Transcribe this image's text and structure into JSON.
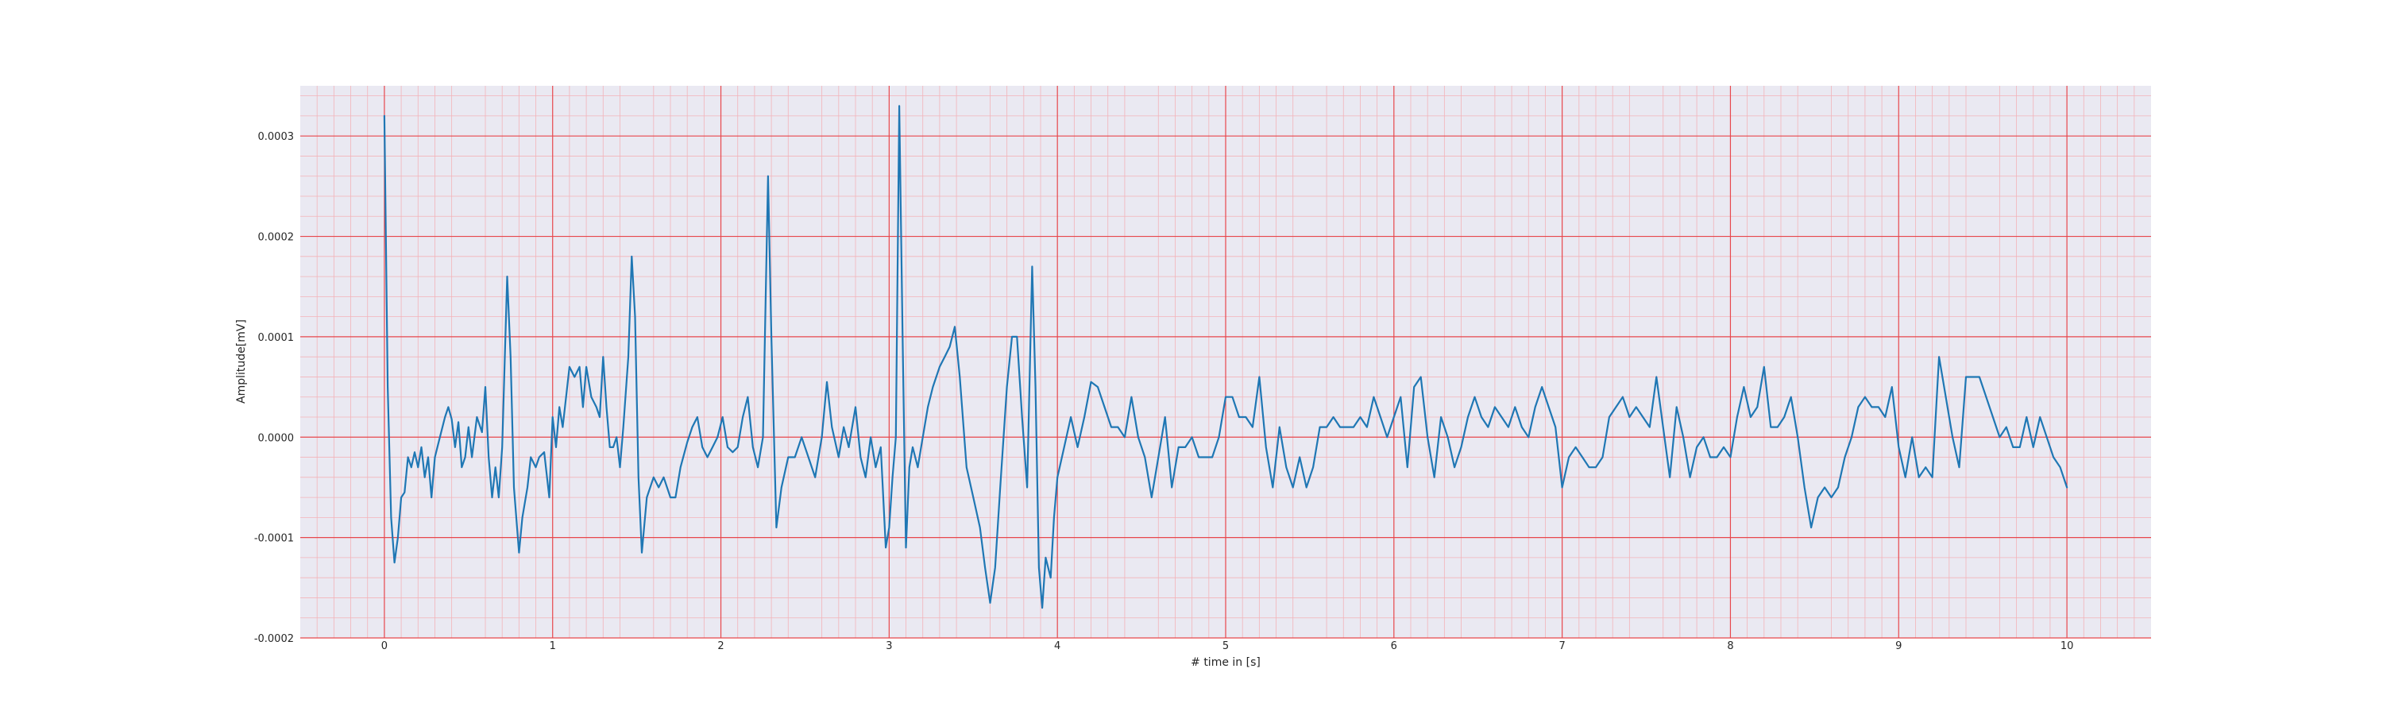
{
  "chart_data": {
    "type": "line",
    "title": "",
    "xlabel": "# time in [s]",
    "ylabel": "Amplitude[mV]",
    "xlim": [
      -0.5,
      10.5
    ],
    "ylim": [
      -0.0002,
      0.00035
    ],
    "x_ticks": [
      0,
      1,
      2,
      3,
      4,
      5,
      6,
      7,
      8,
      9,
      10
    ],
    "x_tick_labels": [
      "0",
      "1",
      "2",
      "3",
      "4",
      "5",
      "6",
      "7",
      "8",
      "9",
      "10"
    ],
    "y_ticks": [
      -0.0002,
      -0.0001,
      0.0,
      0.0001,
      0.0002,
      0.0003
    ],
    "y_tick_labels": [
      "-0.0002",
      "-0.0001",
      "0.0000",
      "0.0001",
      "0.0002",
      "0.0003"
    ],
    "grid": true,
    "minor_grid": true,
    "colors": {
      "background": "#eae9f2",
      "major_grid": "#e8474c",
      "minor_grid": "#f3b3b9",
      "line": "#1f77b4"
    },
    "series": [
      {
        "points": [
          [
            0.0,
            0.00032
          ],
          [
            0.02,
            5e-05
          ],
          [
            0.04,
            -8e-05
          ],
          [
            0.06,
            -0.000125
          ],
          [
            0.08,
            -0.0001
          ],
          [
            0.1,
            -6e-05
          ],
          [
            0.12,
            -5.5e-05
          ],
          [
            0.14,
            -2e-05
          ],
          [
            0.16,
            -3e-05
          ],
          [
            0.18,
            -1.5e-05
          ],
          [
            0.2,
            -3e-05
          ],
          [
            0.22,
            -1e-05
          ],
          [
            0.24,
            -4e-05
          ],
          [
            0.26,
            -2e-05
          ],
          [
            0.28,
            -6e-05
          ],
          [
            0.3,
            -2e-05
          ],
          [
            0.33,
            0.0
          ],
          [
            0.36,
            2e-05
          ],
          [
            0.38,
            3e-05
          ],
          [
            0.4,
            1.8e-05
          ],
          [
            0.42,
            -1e-05
          ],
          [
            0.44,
            1.5e-05
          ],
          [
            0.46,
            -3e-05
          ],
          [
            0.48,
            -2e-05
          ],
          [
            0.5,
            1e-05
          ],
          [
            0.52,
            -2e-05
          ],
          [
            0.55,
            2e-05
          ],
          [
            0.58,
            5e-06
          ],
          [
            0.6,
            5e-05
          ],
          [
            0.62,
            -2e-05
          ],
          [
            0.64,
            -6e-05
          ],
          [
            0.66,
            -3e-05
          ],
          [
            0.68,
            -6e-05
          ],
          [
            0.7,
            -1e-05
          ],
          [
            0.73,
            0.00016
          ],
          [
            0.75,
            8e-05
          ],
          [
            0.77,
            -5e-05
          ],
          [
            0.8,
            -0.000115
          ],
          [
            0.82,
            -8e-05
          ],
          [
            0.85,
            -5e-05
          ],
          [
            0.87,
            -2e-05
          ],
          [
            0.9,
            -3e-05
          ],
          [
            0.92,
            -2e-05
          ],
          [
            0.95,
            -1.5e-05
          ],
          [
            0.98,
            -6e-05
          ],
          [
            1.0,
            2e-05
          ],
          [
            1.02,
            -1e-05
          ],
          [
            1.04,
            3e-05
          ],
          [
            1.06,
            1e-05
          ],
          [
            1.1,
            7e-05
          ],
          [
            1.13,
            6e-05
          ],
          [
            1.16,
            7e-05
          ],
          [
            1.18,
            3e-05
          ],
          [
            1.2,
            7e-05
          ],
          [
            1.23,
            4e-05
          ],
          [
            1.26,
            3e-05
          ],
          [
            1.28,
            2e-05
          ],
          [
            1.3,
            8e-05
          ],
          [
            1.32,
            3e-05
          ],
          [
            1.34,
            -1e-05
          ],
          [
            1.36,
            -1e-05
          ],
          [
            1.38,
            0.0
          ],
          [
            1.4,
            -3e-05
          ],
          [
            1.42,
            1e-05
          ],
          [
            1.45,
            8e-05
          ],
          [
            1.47,
            0.00018
          ],
          [
            1.49,
            0.00012
          ],
          [
            1.51,
            -4e-05
          ],
          [
            1.53,
            -0.000115
          ],
          [
            1.56,
            -6e-05
          ],
          [
            1.6,
            -4e-05
          ],
          [
            1.63,
            -5e-05
          ],
          [
            1.66,
            -4e-05
          ],
          [
            1.7,
            -6e-05
          ],
          [
            1.73,
            -6e-05
          ],
          [
            1.76,
            -3e-05
          ],
          [
            1.8,
            -5e-06
          ],
          [
            1.83,
            1e-05
          ],
          [
            1.86,
            2e-05
          ],
          [
            1.89,
            -1e-05
          ],
          [
            1.92,
            -2e-05
          ],
          [
            1.95,
            -1e-05
          ],
          [
            1.98,
            0.0
          ],
          [
            2.01,
            2e-05
          ],
          [
            2.04,
            -1e-05
          ],
          [
            2.07,
            -1.5e-05
          ],
          [
            2.1,
            -1e-05
          ],
          [
            2.13,
            2e-05
          ],
          [
            2.16,
            4e-05
          ],
          [
            2.19,
            -1e-05
          ],
          [
            2.22,
            -3e-05
          ],
          [
            2.25,
            0.0
          ],
          [
            2.28,
            0.00026
          ],
          [
            2.3,
            0.0001
          ],
          [
            2.33,
            -9e-05
          ],
          [
            2.36,
            -5e-05
          ],
          [
            2.4,
            -2e-05
          ],
          [
            2.44,
            -2e-05
          ],
          [
            2.48,
            0.0
          ],
          [
            2.52,
            -2e-05
          ],
          [
            2.56,
            -4e-05
          ],
          [
            2.6,
            0.0
          ],
          [
            2.63,
            5.5e-05
          ],
          [
            2.66,
            1e-05
          ],
          [
            2.7,
            -2e-05
          ],
          [
            2.73,
            1e-05
          ],
          [
            2.76,
            -1e-05
          ],
          [
            2.8,
            3e-05
          ],
          [
            2.83,
            -2e-05
          ],
          [
            2.86,
            -4e-05
          ],
          [
            2.89,
            0.0
          ],
          [
            2.92,
            -3e-05
          ],
          [
            2.95,
            -1e-05
          ],
          [
            2.98,
            -0.00011
          ],
          [
            3.0,
            -9e-05
          ],
          [
            3.02,
            -4e-05
          ],
          [
            3.04,
            0.0
          ],
          [
            3.06,
            0.00033
          ],
          [
            3.08,
            0.0001
          ],
          [
            3.1,
            -0.00011
          ],
          [
            3.12,
            -3e-05
          ],
          [
            3.14,
            -1e-05
          ],
          [
            3.17,
            -3e-05
          ],
          [
            3.2,
            0.0
          ],
          [
            3.23,
            3e-05
          ],
          [
            3.26,
            5e-05
          ],
          [
            3.3,
            7e-05
          ],
          [
            3.33,
            8e-05
          ],
          [
            3.36,
            9e-05
          ],
          [
            3.39,
            0.00011
          ],
          [
            3.42,
            6e-05
          ],
          [
            3.46,
            -3e-05
          ],
          [
            3.5,
            -6e-05
          ],
          [
            3.54,
            -9e-05
          ],
          [
            3.57,
            -0.00013
          ],
          [
            3.6,
            -0.000165
          ],
          [
            3.63,
            -0.00013
          ],
          [
            3.66,
            -5e-05
          ],
          [
            3.7,
            5e-05
          ],
          [
            3.73,
            0.0001
          ],
          [
            3.76,
            0.0001
          ],
          [
            3.79,
            2e-05
          ],
          [
            3.82,
            -5e-05
          ],
          [
            3.85,
            0.00017
          ],
          [
            3.87,
            5e-05
          ],
          [
            3.89,
            -0.00013
          ],
          [
            3.91,
            -0.00017
          ],
          [
            3.93,
            -0.00012
          ],
          [
            3.96,
            -0.00014
          ],
          [
            3.98,
            -8e-05
          ],
          [
            4.0,
            -4e-05
          ],
          [
            4.04,
            -1e-05
          ],
          [
            4.08,
            2e-05
          ],
          [
            4.12,
            -1e-05
          ],
          [
            4.16,
            2e-05
          ],
          [
            4.2,
            5.5e-05
          ],
          [
            4.24,
            5e-05
          ],
          [
            4.28,
            3e-05
          ],
          [
            4.32,
            1e-05
          ],
          [
            4.36,
            1e-05
          ],
          [
            4.4,
            0.0
          ],
          [
            4.44,
            4e-05
          ],
          [
            4.48,
            0.0
          ],
          [
            4.52,
            -2e-05
          ],
          [
            4.56,
            -6e-05
          ],
          [
            4.6,
            -2e-05
          ],
          [
            4.64,
            2e-05
          ],
          [
            4.68,
            -5e-05
          ],
          [
            4.72,
            -1e-05
          ],
          [
            4.76,
            -1e-05
          ],
          [
            4.8,
            0.0
          ],
          [
            4.84,
            -2e-05
          ],
          [
            4.88,
            -2e-05
          ],
          [
            4.92,
            -2e-05
          ],
          [
            4.96,
            0.0
          ],
          [
            5.0,
            4e-05
          ],
          [
            5.04,
            4e-05
          ],
          [
            5.08,
            2e-05
          ],
          [
            5.12,
            2e-05
          ],
          [
            5.16,
            1e-05
          ],
          [
            5.2,
            6e-05
          ],
          [
            5.24,
            -1e-05
          ],
          [
            5.28,
            -5e-05
          ],
          [
            5.32,
            1e-05
          ],
          [
            5.36,
            -3e-05
          ],
          [
            5.4,
            -5e-05
          ],
          [
            5.44,
            -2e-05
          ],
          [
            5.48,
            -5e-05
          ],
          [
            5.52,
            -3e-05
          ],
          [
            5.56,
            1e-05
          ],
          [
            5.6,
            1e-05
          ],
          [
            5.64,
            2e-05
          ],
          [
            5.68,
            1e-05
          ],
          [
            5.72,
            1e-05
          ],
          [
            5.76,
            1e-05
          ],
          [
            5.8,
            2e-05
          ],
          [
            5.84,
            1e-05
          ],
          [
            5.88,
            4e-05
          ],
          [
            5.92,
            2e-05
          ],
          [
            5.96,
            0.0
          ],
          [
            6.0,
            2e-05
          ],
          [
            6.04,
            4e-05
          ],
          [
            6.08,
            -3e-05
          ],
          [
            6.12,
            5e-05
          ],
          [
            6.16,
            6e-05
          ],
          [
            6.2,
            0.0
          ],
          [
            6.24,
            -4e-05
          ],
          [
            6.28,
            2e-05
          ],
          [
            6.32,
            0.0
          ],
          [
            6.36,
            -3e-05
          ],
          [
            6.4,
            -1e-05
          ],
          [
            6.44,
            2e-05
          ],
          [
            6.48,
            4e-05
          ],
          [
            6.52,
            2e-05
          ],
          [
            6.56,
            1e-05
          ],
          [
            6.6,
            3e-05
          ],
          [
            6.64,
            2e-05
          ],
          [
            6.68,
            1e-05
          ],
          [
            6.72,
            3e-05
          ],
          [
            6.76,
            1e-05
          ],
          [
            6.8,
            0.0
          ],
          [
            6.84,
            3e-05
          ],
          [
            6.88,
            5e-05
          ],
          [
            6.92,
            3e-05
          ],
          [
            6.96,
            1e-05
          ],
          [
            7.0,
            -5e-05
          ],
          [
            7.04,
            -2e-05
          ],
          [
            7.08,
            -1e-05
          ],
          [
            7.12,
            -2e-05
          ],
          [
            7.16,
            -3e-05
          ],
          [
            7.2,
            -3e-05
          ],
          [
            7.24,
            -2e-05
          ],
          [
            7.28,
            2e-05
          ],
          [
            7.32,
            3e-05
          ],
          [
            7.36,
            4e-05
          ],
          [
            7.4,
            2e-05
          ],
          [
            7.44,
            3e-05
          ],
          [
            7.48,
            2e-05
          ],
          [
            7.52,
            1e-05
          ],
          [
            7.56,
            6e-05
          ],
          [
            7.6,
            1e-05
          ],
          [
            7.64,
            -4e-05
          ],
          [
            7.68,
            3e-05
          ],
          [
            7.72,
            0.0
          ],
          [
            7.76,
            -4e-05
          ],
          [
            7.8,
            -1e-05
          ],
          [
            7.84,
            0.0
          ],
          [
            7.88,
            -2e-05
          ],
          [
            7.92,
            -2e-05
          ],
          [
            7.96,
            -1e-05
          ],
          [
            8.0,
            -2e-05
          ],
          [
            8.04,
            2e-05
          ],
          [
            8.08,
            5e-05
          ],
          [
            8.12,
            2e-05
          ],
          [
            8.16,
            3e-05
          ],
          [
            8.2,
            7e-05
          ],
          [
            8.24,
            1e-05
          ],
          [
            8.28,
            1e-05
          ],
          [
            8.32,
            2e-05
          ],
          [
            8.36,
            4e-05
          ],
          [
            8.4,
            0.0
          ],
          [
            8.44,
            -5e-05
          ],
          [
            8.48,
            -9e-05
          ],
          [
            8.52,
            -6e-05
          ],
          [
            8.56,
            -5e-05
          ],
          [
            8.6,
            -6e-05
          ],
          [
            8.64,
            -5e-05
          ],
          [
            8.68,
            -2e-05
          ],
          [
            8.72,
            0.0
          ],
          [
            8.76,
            3e-05
          ],
          [
            8.8,
            4e-05
          ],
          [
            8.84,
            3e-05
          ],
          [
            8.88,
            3e-05
          ],
          [
            8.92,
            2e-05
          ],
          [
            8.96,
            5e-05
          ],
          [
            9.0,
            -1e-05
          ],
          [
            9.04,
            -4e-05
          ],
          [
            9.08,
            0.0
          ],
          [
            9.12,
            -4e-05
          ],
          [
            9.16,
            -3e-05
          ],
          [
            9.2,
            -4e-05
          ],
          [
            9.24,
            8e-05
          ],
          [
            9.28,
            4e-05
          ],
          [
            9.32,
            0.0
          ],
          [
            9.36,
            -3e-05
          ],
          [
            9.4,
            6e-05
          ],
          [
            9.44,
            6e-05
          ],
          [
            9.48,
            6e-05
          ],
          [
            9.52,
            4e-05
          ],
          [
            9.56,
            2e-05
          ],
          [
            9.6,
            0.0
          ],
          [
            9.64,
            1e-05
          ],
          [
            9.68,
            -1e-05
          ],
          [
            9.72,
            -1e-05
          ],
          [
            9.76,
            2e-05
          ],
          [
            9.8,
            -1e-05
          ],
          [
            9.84,
            2e-05
          ],
          [
            9.88,
            0.0
          ],
          [
            9.92,
            -2e-05
          ],
          [
            9.96,
            -3e-05
          ],
          [
            10.0,
            -5e-05
          ]
        ]
      }
    ]
  }
}
